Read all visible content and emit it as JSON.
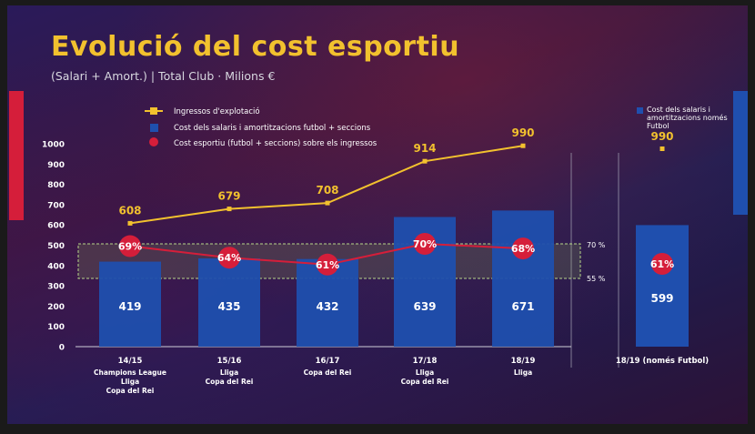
{
  "title": "Evolució del cost esportiu",
  "subtitle": "(Salari + Amort.) | Total Club · Milions €",
  "legend": {
    "income": "Ingressos d'explotació",
    "cost": "Cost dels salaris i amortitzacions futbol + seccions",
    "ratio": "Cost esportiu (futbol + seccions) sobre els ingressos"
  },
  "side_legend": {
    "line1": "Cost dels salaris i",
    "line2": "amortitzacions només",
    "line3": "Futbol"
  },
  "band_labels": {
    "upper": "70 %",
    "lower": "55 %"
  },
  "colors": {
    "income": "#f2c12e",
    "cost": "#1f4fae",
    "ratio": "#d51e3a",
    "accent_blue": "#1f4fae",
    "accent_red": "#d51e3a"
  },
  "chart_data": [
    {
      "type": "bar",
      "categories": [
        "14/15",
        "15/16",
        "16/17",
        "17/18",
        "18/19"
      ],
      "category_notes": [
        [
          "Champions League",
          "Lliga",
          "Copa del Rei"
        ],
        [
          "Lliga",
          "Copa del Rei"
        ],
        [
          "Copa del Rei"
        ],
        [
          "Lliga",
          "Copa del Rei"
        ],
        [
          "Lliga"
        ]
      ],
      "series": [
        {
          "name": "Cost dels salaris i amortitzacions futbol + seccions",
          "kind": "bar",
          "values": [
            419,
            435,
            432,
            639,
            671
          ]
        },
        {
          "name": "Ingressos d'explotació",
          "kind": "line",
          "values": [
            608,
            679,
            708,
            914,
            990
          ]
        },
        {
          "name": "Cost esportiu (futbol + seccions) sobre els ingressos",
          "kind": "line-percent",
          "values": [
            69,
            64,
            61,
            70,
            68
          ]
        }
      ],
      "ylim": [
        0,
        1000
      ],
      "yticks": [
        0,
        100,
        200,
        300,
        400,
        500,
        600,
        700,
        800,
        900,
        1000
      ],
      "band_percent": [
        55,
        70
      ],
      "grid": false,
      "legend_position": "top-left"
    },
    {
      "type": "bar",
      "categories": [
        "18/19 (només Futbol)"
      ],
      "series": [
        {
          "name": "Cost dels salaris i amortitzacions només Futbol",
          "kind": "bar",
          "values": [
            599
          ]
        },
        {
          "name": "Ingressos d'explotació",
          "kind": "marker",
          "values": [
            990
          ]
        },
        {
          "name": "Ratio",
          "kind": "percent",
          "values": [
            61
          ]
        }
      ],
      "legend_position": "top-right"
    }
  ]
}
